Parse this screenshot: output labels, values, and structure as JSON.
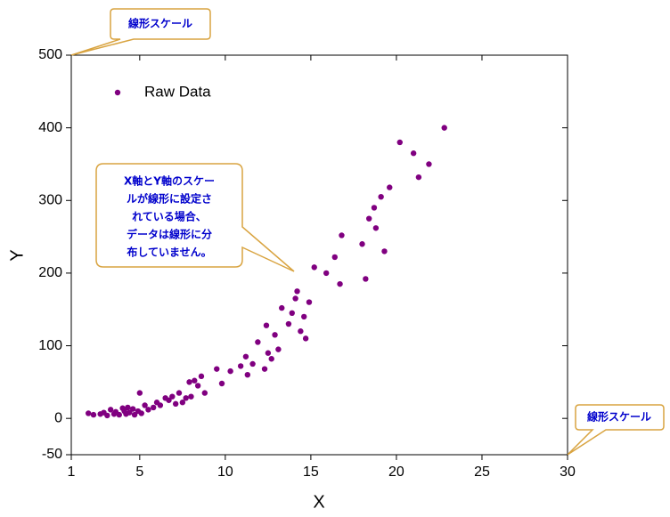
{
  "chart_data": {
    "type": "scatter",
    "xlabel": "X",
    "ylabel": "Y",
    "xlim": [
      1,
      30
    ],
    "xticks": [
      1,
      5,
      10,
      15,
      20,
      25,
      30
    ],
    "ylim": [
      -50,
      500
    ],
    "yticks": [
      -50,
      0,
      100,
      200,
      300,
      400,
      500
    ],
    "legend": "upper left",
    "series": [
      {
        "name": "Raw Data",
        "color": "#800080",
        "x": [
          2.0,
          2.3,
          2.7,
          2.9,
          3.1,
          3.3,
          3.5,
          3.6,
          3.8,
          4.0,
          4.1,
          4.2,
          4.3,
          4.4,
          4.6,
          4.7,
          4.9,
          5.0,
          5.1,
          5.3,
          5.5,
          5.8,
          6.0,
          6.2,
          6.5,
          6.7,
          6.9,
          7.1,
          7.3,
          7.5,
          7.7,
          7.9,
          8.0,
          8.2,
          8.4,
          8.6,
          8.8,
          9.5,
          9.8,
          10.3,
          10.9,
          11.2,
          11.3,
          11.6,
          11.9,
          12.3,
          12.4,
          12.5,
          12.7,
          12.9,
          13.1,
          13.3,
          13.7,
          13.9,
          14.1,
          14.2,
          14.4,
          14.6,
          14.7,
          14.9,
          15.2,
          15.9,
          16.4,
          16.7,
          16.8,
          18.0,
          18.2,
          18.4,
          18.7,
          18.8,
          19.1,
          19.3,
          19.6,
          20.2,
          21.0,
          21.3,
          21.9,
          22.8
        ],
        "values": [
          7,
          5,
          6,
          8,
          4,
          12,
          6,
          9,
          5,
          14,
          10,
          6,
          15,
          8,
          13,
          5,
          10,
          35,
          7,
          18,
          12,
          15,
          22,
          18,
          28,
          25,
          30,
          20,
          35,
          22,
          28,
          50,
          30,
          52,
          45,
          58,
          35,
          68,
          48,
          65,
          72,
          85,
          60,
          75,
          105,
          68,
          128,
          90,
          82,
          115,
          95,
          152,
          130,
          145,
          165,
          175,
          120,
          140,
          110,
          160,
          208,
          200,
          222,
          185,
          252,
          240,
          192,
          275,
          290,
          262,
          305,
          230,
          318,
          380,
          365,
          332,
          350,
          400
        ]
      }
    ],
    "annotations": [
      {
        "text": "線形スケール"
      },
      {
        "lines": [
          "X軸とY軸のスケー",
          "ルが線形に設定さ",
          "れている場合、",
          "データは線形に分",
          "布していません。"
        ]
      },
      {
        "text": "線形スケール"
      }
    ]
  }
}
